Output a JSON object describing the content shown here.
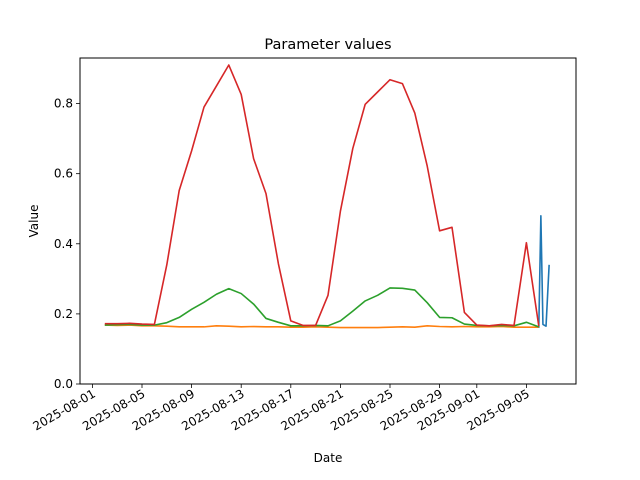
{
  "chart_data": {
    "type": "line",
    "title": "Parameter values",
    "xlabel": "Date",
    "ylabel": "Value",
    "xlim": [
      "2025-07-31",
      "2025-09-09"
    ],
    "ylim": [
      0,
      0.93
    ],
    "grid": false,
    "x_tick_labels": [
      "2025-08-01",
      "2025-08-05",
      "2025-08-09",
      "2025-08-13",
      "2025-08-17",
      "2025-08-21",
      "2025-08-25",
      "2025-08-29",
      "2025-09-01",
      "2025-09-05"
    ],
    "y_ticks": [
      0.0,
      0.2,
      0.4,
      0.6,
      0.8
    ],
    "y_tick_labels": [
      "0.0",
      "0.2",
      "0.4",
      "0.6",
      "0.8"
    ],
    "series": [
      {
        "color": "#1f77b4",
        "points": [
          [
            "2025-09-06",
            0.16
          ],
          [
            "2025-09-06 04:00",
            0.48
          ],
          [
            "2025-09-06 08:00",
            0.17
          ],
          [
            "2025-09-06 14:00",
            0.165
          ],
          [
            "2025-09-06 20:00",
            0.34
          ]
        ]
      },
      {
        "color": "#ff7f0e",
        "points": [
          [
            "2025-08-02",
            0.168
          ],
          [
            "2025-08-03",
            0.167
          ],
          [
            "2025-08-04",
            0.168
          ],
          [
            "2025-08-05",
            0.166
          ],
          [
            "2025-08-06",
            0.166
          ],
          [
            "2025-08-07",
            0.165
          ],
          [
            "2025-08-08",
            0.163
          ],
          [
            "2025-08-09",
            0.163
          ],
          [
            "2025-08-10",
            0.163
          ],
          [
            "2025-08-11",
            0.166
          ],
          [
            "2025-08-12",
            0.165
          ],
          [
            "2025-08-13",
            0.163
          ],
          [
            "2025-08-14",
            0.164
          ],
          [
            "2025-08-15",
            0.163
          ],
          [
            "2025-08-16",
            0.163
          ],
          [
            "2025-08-17",
            0.162
          ],
          [
            "2025-08-18",
            0.162
          ],
          [
            "2025-08-19",
            0.163
          ],
          [
            "2025-08-20",
            0.162
          ],
          [
            "2025-08-21",
            0.161
          ],
          [
            "2025-08-22",
            0.161
          ],
          [
            "2025-08-23",
            0.161
          ],
          [
            "2025-08-24",
            0.161
          ],
          [
            "2025-08-25",
            0.162
          ],
          [
            "2025-08-26",
            0.163
          ],
          [
            "2025-08-27",
            0.162
          ],
          [
            "2025-08-28",
            0.166
          ],
          [
            "2025-08-29",
            0.164
          ],
          [
            "2025-08-30",
            0.163
          ],
          [
            "2025-08-31",
            0.164
          ],
          [
            "2025-09-01",
            0.163
          ],
          [
            "2025-09-02",
            0.163
          ],
          [
            "2025-09-03",
            0.164
          ],
          [
            "2025-09-04",
            0.162
          ],
          [
            "2025-09-05",
            0.162
          ],
          [
            "2025-09-06",
            0.162
          ]
        ]
      },
      {
        "color": "#2ca02c",
        "points": [
          [
            "2025-08-02",
            0.168
          ],
          [
            "2025-08-03",
            0.169
          ],
          [
            "2025-08-04",
            0.17
          ],
          [
            "2025-08-05",
            0.168
          ],
          [
            "2025-08-06",
            0.168
          ],
          [
            "2025-08-07",
            0.175
          ],
          [
            "2025-08-08",
            0.19
          ],
          [
            "2025-08-09",
            0.213
          ],
          [
            "2025-08-10",
            0.233
          ],
          [
            "2025-08-11",
            0.256
          ],
          [
            "2025-08-12",
            0.272
          ],
          [
            "2025-08-13",
            0.258
          ],
          [
            "2025-08-14",
            0.228
          ],
          [
            "2025-08-15",
            0.187
          ],
          [
            "2025-08-16",
            0.176
          ],
          [
            "2025-08-17",
            0.166
          ],
          [
            "2025-08-18",
            0.166
          ],
          [
            "2025-08-19",
            0.167
          ],
          [
            "2025-08-20",
            0.166
          ],
          [
            "2025-08-21",
            0.18
          ],
          [
            "2025-08-22",
            0.208
          ],
          [
            "2025-08-23",
            0.237
          ],
          [
            "2025-08-24",
            0.253
          ],
          [
            "2025-08-25",
            0.274
          ],
          [
            "2025-08-26",
            0.273
          ],
          [
            "2025-08-27",
            0.268
          ],
          [
            "2025-08-28",
            0.232
          ],
          [
            "2025-08-29",
            0.19
          ],
          [
            "2025-08-30",
            0.189
          ],
          [
            "2025-08-31",
            0.171
          ],
          [
            "2025-09-01",
            0.167
          ],
          [
            "2025-09-02",
            0.166
          ],
          [
            "2025-09-03",
            0.167
          ],
          [
            "2025-09-04",
            0.166
          ],
          [
            "2025-09-05",
            0.176
          ],
          [
            "2025-09-06",
            0.163
          ]
        ]
      },
      {
        "color": "#d62728",
        "points": [
          [
            "2025-08-02",
            0.172
          ],
          [
            "2025-08-03",
            0.172
          ],
          [
            "2025-08-04",
            0.173
          ],
          [
            "2025-08-05",
            0.171
          ],
          [
            "2025-08-06",
            0.17
          ],
          [
            "2025-08-07",
            0.34
          ],
          [
            "2025-08-08",
            0.552
          ],
          [
            "2025-08-09",
            0.665
          ],
          [
            "2025-08-10",
            0.79
          ],
          [
            "2025-08-11",
            0.85
          ],
          [
            "2025-08-12",
            0.91
          ],
          [
            "2025-08-13",
            0.826
          ],
          [
            "2025-08-14",
            0.643
          ],
          [
            "2025-08-15",
            0.543
          ],
          [
            "2025-08-16",
            0.343
          ],
          [
            "2025-08-17",
            0.18
          ],
          [
            "2025-08-18",
            0.167
          ],
          [
            "2025-08-19",
            0.167
          ],
          [
            "2025-08-20",
            0.253
          ],
          [
            "2025-08-21",
            0.493
          ],
          [
            "2025-08-22",
            0.672
          ],
          [
            "2025-08-23",
            0.798
          ],
          [
            "2025-08-24",
            0.833
          ],
          [
            "2025-08-25",
            0.868
          ],
          [
            "2025-08-26",
            0.857
          ],
          [
            "2025-08-27",
            0.773
          ],
          [
            "2025-08-28",
            0.622
          ],
          [
            "2025-08-29",
            0.437
          ],
          [
            "2025-08-30",
            0.447
          ],
          [
            "2025-08-31",
            0.204
          ],
          [
            "2025-09-01",
            0.168
          ],
          [
            "2025-09-02",
            0.166
          ],
          [
            "2025-09-03",
            0.17
          ],
          [
            "2025-09-04",
            0.167
          ],
          [
            "2025-09-05",
            0.403
          ],
          [
            "2025-09-06",
            0.165
          ]
        ]
      }
    ]
  }
}
